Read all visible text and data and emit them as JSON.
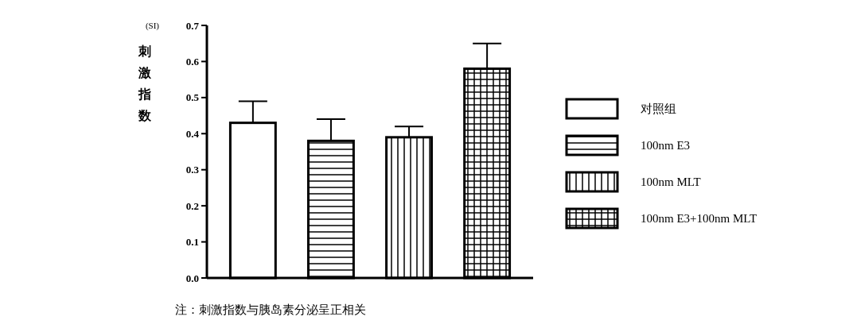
{
  "chart_data": {
    "type": "bar",
    "ylabel": "(SI) 刺激指数",
    "categories": [
      null,
      null,
      null,
      null
    ],
    "series": [
      {
        "name": "对照组",
        "color": "#000000",
        "values": [
          0.43,
          null,
          null,
          null
        ],
        "errors": [
          [
            0.43,
            0.49
          ],
          null,
          null,
          null
        ]
      },
      {
        "name": "100nm E3",
        "color": "#000000",
        "values": [
          null,
          0.38,
          null,
          null
        ],
        "errors": [
          null,
          [
            0.38,
            0.44
          ],
          null,
          null
        ]
      },
      {
        "name": "100nm MLT",
        "color": "#000000",
        "values": [
          null,
          null,
          0.39,
          null
        ],
        "errors": [
          null,
          null,
          [
            0.39,
            0.42
          ],
          null
        ]
      },
      {
        "name": "100nm E3+100nm MLT",
        "color": "#000000",
        "values": [
          null,
          null,
          null,
          0.58
        ],
        "errors": [
          null,
          null,
          null,
          [
            0.58,
            0.65
          ]
        ]
      }
    ],
    "ylim": [
      0,
      0.7
    ],
    "yticks": [
      {
        "value": 0,
        "label": "0.0"
      },
      0.1,
      0.2,
      0.3,
      0.4,
      0.5,
      0.6,
      0.7
    ],
    "legend": "right",
    "grid": false,
    "annotations": [
      "注：刺激指数与胰岛素分泌呈正相关"
    ]
  }
}
